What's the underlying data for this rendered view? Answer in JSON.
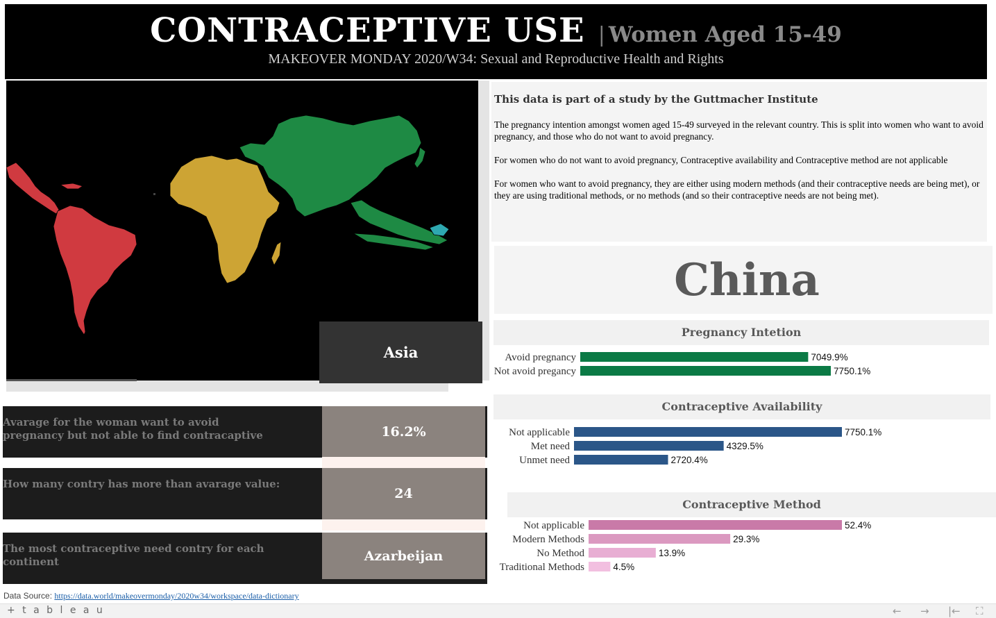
{
  "header": {
    "title_main": "CONTRACEPTIVE  USE",
    "title_sep": "|",
    "title_sub": "Women Aged 15-49",
    "subtitle": "MAKEOVER MONDAY 2020/W34: Sexual and Reproductive Health and Rights"
  },
  "map": {
    "selected_continent": "Asia",
    "continent_colors": {
      "americas": "#d03a40",
      "africa": "#cda434",
      "asia": "#1e8a44",
      "oceania": "#2ea8b0",
      "background": "#000000"
    }
  },
  "kpis": [
    {
      "label": "Avarage for the woman want to avoid pregnancy but not able to find contracaptive",
      "value": "16.2%"
    },
    {
      "label": "How many contry has more than avarage value:",
      "value": "24"
    },
    {
      "label": "The most contraceptive need contry for each continent",
      "value": "Azarbeijan"
    }
  ],
  "description": {
    "heading": "This data is part of a study by the Guttmacher Institute",
    "paragraphs": [
      "The pregnancy intention amongst women aged 15-49 surveyed in the relevant country. This is split into women who want to avoid pregnancy, and those who do not want to avoid pregnancy.",
      "For women who do not want to avoid pregnancy, Contraceptive availability and Contraceptive method are not applicable",
      "For women who want to avoid pregnancy, they are either using modern methods (and their contraceptive needs are being met), or they are using traditional methods, or no methods (and so their contraceptive needs are not being met)."
    ]
  },
  "country": {
    "name": "China"
  },
  "chart_data": [
    {
      "type": "bar",
      "orientation": "horizontal",
      "title": "Pregnancy Intetion",
      "categories": [
        "Avoid pregnancy",
        "Not avoid pregancy"
      ],
      "values": [
        7049.9,
        7750.1
      ],
      "labels": [
        "7049.9%",
        "7750.1%"
      ],
      "colors": [
        "#0b7a45",
        "#0b7a45"
      ]
    },
    {
      "type": "bar",
      "orientation": "horizontal",
      "title": "Contraceptive Availability",
      "categories": [
        "Not applicable",
        "Met need",
        "Unmet need"
      ],
      "values": [
        7750.1,
        4329.5,
        2720.4
      ],
      "labels": [
        "7750.1%",
        "4329.5%",
        "2720.4%"
      ],
      "colors": [
        "#2b5688",
        "#2b5688",
        "#2b5688"
      ]
    },
    {
      "type": "bar",
      "orientation": "horizontal",
      "title": "Contraceptive Method",
      "categories": [
        "Not applicable",
        "Modern Methods",
        "No Method",
        "Traditional Methods"
      ],
      "values": [
        52.4,
        29.3,
        13.9,
        4.5
      ],
      "labels": [
        "52.4%",
        "29.3%",
        "13.9%",
        "4.5%"
      ],
      "colors": [
        "#c97aa8",
        "#db99c0",
        "#e8aed3",
        "#f2bfe0"
      ]
    }
  ],
  "footer": {
    "data_source_label": "Data Source:",
    "data_source_url": "https://data.world/makeovermonday/2020w34/workspace/data-dictionary",
    "logo": "+ t a b l e a u",
    "back_icon": "←",
    "forward_icon": "→",
    "first_icon": "|←",
    "fullscreen_icon": "⛶"
  }
}
